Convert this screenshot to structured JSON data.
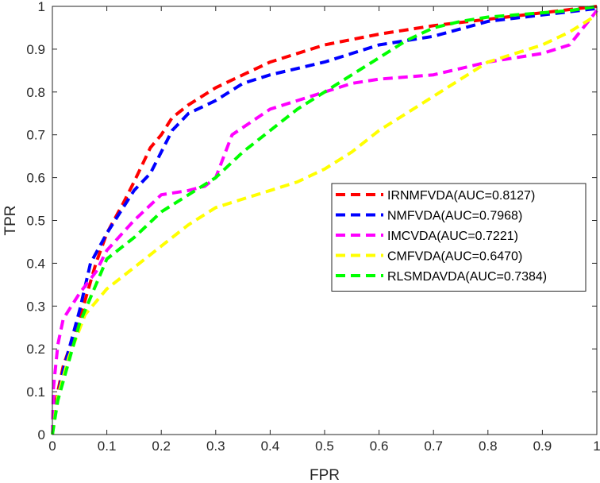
{
  "chart_data": {
    "type": "line",
    "xlabel": "FPR",
    "ylabel": "TPR",
    "xlim": [
      0,
      1
    ],
    "ylim": [
      0,
      1
    ],
    "xticks": [
      "0",
      "0.1",
      "0.2",
      "0.3",
      "0.4",
      "0.5",
      "0.6",
      "0.7",
      "0.8",
      "0.9",
      "1"
    ],
    "yticks": [
      "0",
      "0.1",
      "0.2",
      "0.3",
      "0.4",
      "0.5",
      "0.6",
      "0.7",
      "0.8",
      "0.9",
      "1"
    ],
    "grid": false,
    "legend_position": "right-middle",
    "series": [
      {
        "name": "IRNMFVDA(AUC=0.8127)",
        "color": "#ff0000",
        "x": [
          0,
          0.005,
          0.02,
          0.05,
          0.08,
          0.1,
          0.13,
          0.15,
          0.18,
          0.2,
          0.22,
          0.25,
          0.3,
          0.35,
          0.4,
          0.5,
          0.6,
          0.7,
          0.8,
          0.9,
          1.0
        ],
        "y": [
          0,
          0.07,
          0.16,
          0.27,
          0.4,
          0.47,
          0.54,
          0.59,
          0.67,
          0.7,
          0.74,
          0.77,
          0.81,
          0.84,
          0.87,
          0.91,
          0.935,
          0.955,
          0.97,
          0.985,
          1.0
        ]
      },
      {
        "name": "NMFVDA(AUC=0.7968)",
        "color": "#0000ff",
        "x": [
          0,
          0.005,
          0.02,
          0.05,
          0.07,
          0.1,
          0.13,
          0.15,
          0.18,
          0.2,
          0.22,
          0.25,
          0.3,
          0.35,
          0.4,
          0.5,
          0.6,
          0.7,
          0.8,
          0.9,
          1.0
        ],
        "y": [
          0,
          0.06,
          0.15,
          0.29,
          0.4,
          0.47,
          0.53,
          0.57,
          0.61,
          0.66,
          0.71,
          0.75,
          0.78,
          0.82,
          0.84,
          0.87,
          0.91,
          0.93,
          0.965,
          0.98,
          0.995
        ]
      },
      {
        "name": "IMCVDA(AUC=0.7221)",
        "color": "#ff00ff",
        "x": [
          0,
          0.002,
          0.01,
          0.02,
          0.05,
          0.08,
          0.1,
          0.15,
          0.2,
          0.25,
          0.28,
          0.3,
          0.33,
          0.4,
          0.5,
          0.55,
          0.6,
          0.7,
          0.8,
          0.9,
          0.95,
          1.0
        ],
        "y": [
          0,
          0.11,
          0.21,
          0.27,
          0.33,
          0.38,
          0.43,
          0.5,
          0.56,
          0.57,
          0.58,
          0.6,
          0.7,
          0.76,
          0.8,
          0.82,
          0.83,
          0.84,
          0.87,
          0.89,
          0.91,
          0.99
        ]
      },
      {
        "name": "CMFVDA(AUC=0.6470)",
        "color": "#ffff00",
        "x": [
          0,
          0.01,
          0.03,
          0.06,
          0.1,
          0.15,
          0.2,
          0.25,
          0.3,
          0.35,
          0.4,
          0.45,
          0.5,
          0.55,
          0.6,
          0.65,
          0.7,
          0.75,
          0.8,
          0.85,
          0.9,
          0.95,
          1.0
        ],
        "y": [
          0,
          0.09,
          0.18,
          0.28,
          0.34,
          0.39,
          0.44,
          0.49,
          0.53,
          0.55,
          0.57,
          0.59,
          0.62,
          0.66,
          0.71,
          0.75,
          0.79,
          0.83,
          0.87,
          0.89,
          0.91,
          0.94,
          0.98
        ]
      },
      {
        "name": "RLSMDAVDA(AUC=0.7384)",
        "color": "#00ff00",
        "x": [
          0,
          0.01,
          0.03,
          0.05,
          0.08,
          0.1,
          0.13,
          0.15,
          0.2,
          0.25,
          0.3,
          0.35,
          0.4,
          0.45,
          0.5,
          0.55,
          0.6,
          0.65,
          0.7,
          0.75,
          0.8,
          0.85,
          0.9,
          0.95,
          1.0
        ],
        "y": [
          0,
          0.08,
          0.17,
          0.26,
          0.35,
          0.41,
          0.44,
          0.46,
          0.52,
          0.56,
          0.6,
          0.66,
          0.71,
          0.76,
          0.8,
          0.84,
          0.88,
          0.92,
          0.95,
          0.965,
          0.975,
          0.98,
          0.985,
          0.99,
          1.0
        ]
      }
    ]
  }
}
